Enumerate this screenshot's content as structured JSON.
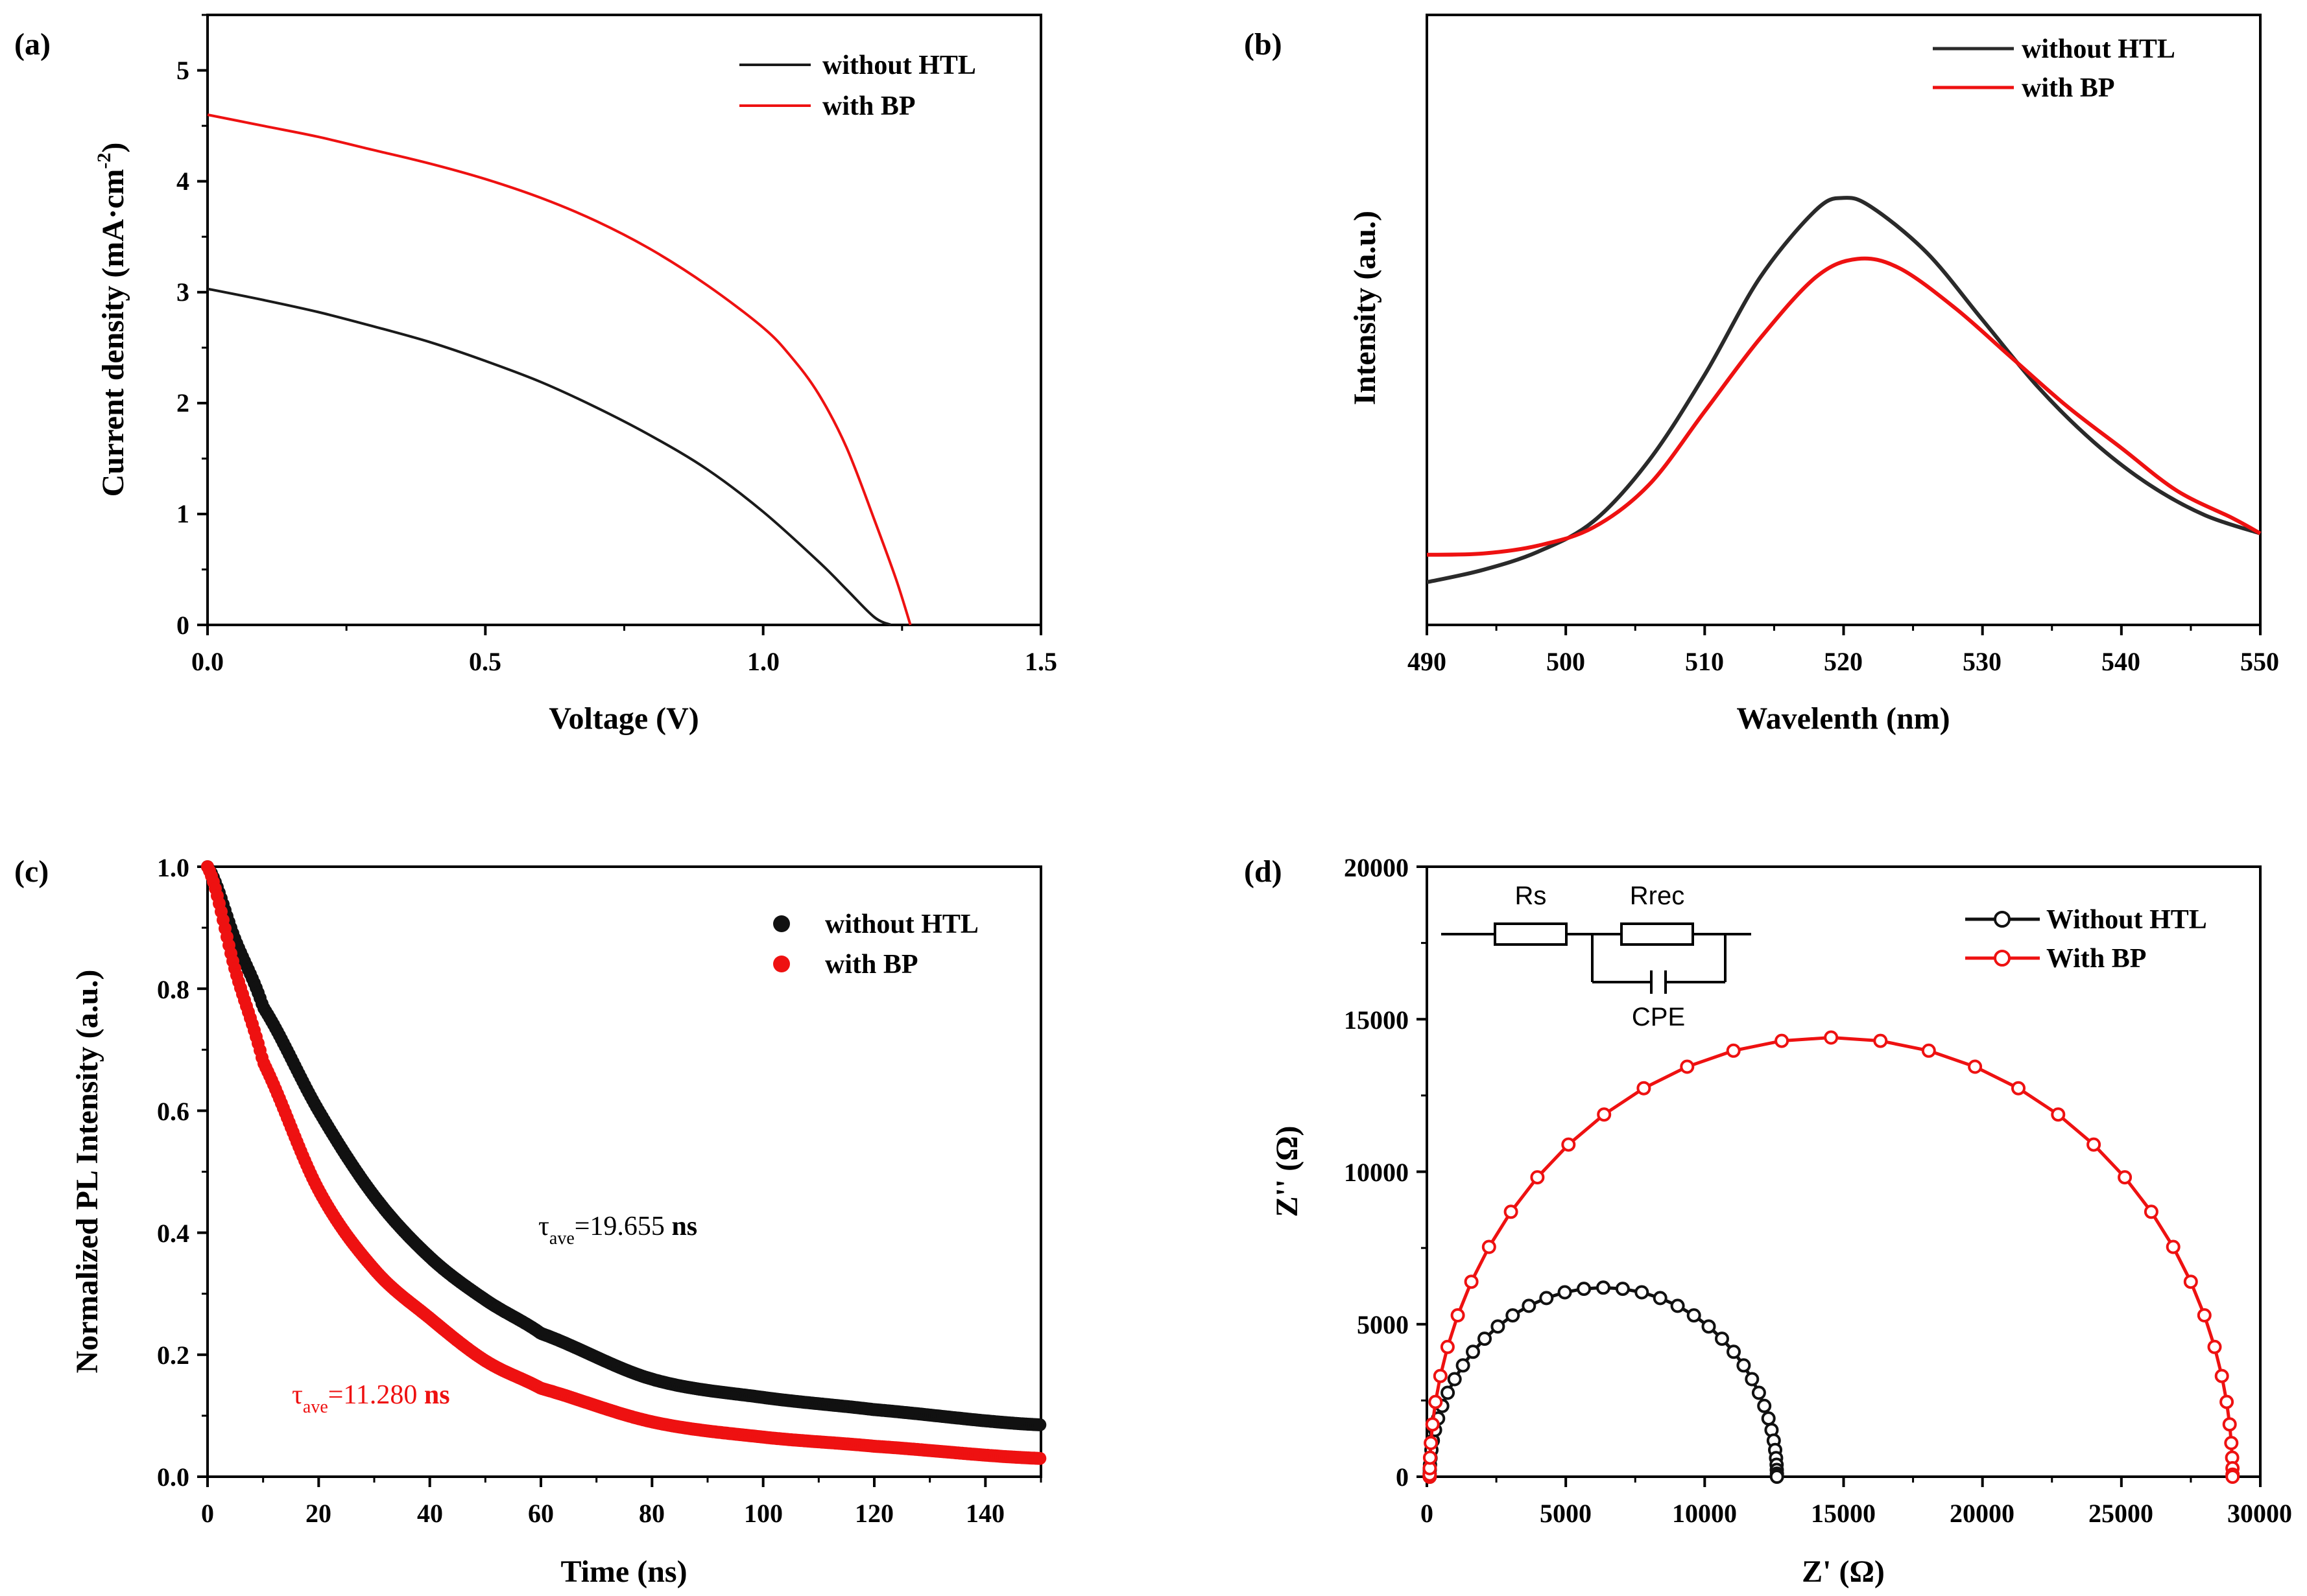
{
  "colors": {
    "black_series": "#1a1a1a",
    "red_series": "#ee1111",
    "axis": "#000000"
  },
  "chart_data": [
    {
      "id": "a",
      "panel_label": "(a)",
      "type": "line",
      "xlabel": "Voltage (V)",
      "ylabel_main": "Current density (mA·cm",
      "ylabel_sup": "-2",
      "ylabel_close": ")",
      "xlim": [
        0,
        1.5
      ],
      "ylim": [
        0,
        5.5
      ],
      "xticks": [
        0.0,
        0.5,
        1.0,
        1.5
      ],
      "xtick_labels": [
        "0.0",
        "0.5",
        "1.0",
        "1.5"
      ],
      "yticks": [
        0,
        1,
        2,
        3,
        4,
        5
      ],
      "ytick_labels": [
        "0",
        "1",
        "2",
        "3",
        "4",
        "5"
      ],
      "legend": [
        "without HTL",
        "with BP"
      ],
      "series": [
        {
          "name": "without HTL",
          "color": "#1a1a1a",
          "x": [
            0,
            0.1,
            0.2,
            0.3,
            0.4,
            0.5,
            0.6,
            0.7,
            0.8,
            0.9,
            1.0,
            1.1,
            1.15,
            1.2,
            1.23
          ],
          "y": [
            3.03,
            2.93,
            2.82,
            2.69,
            2.55,
            2.38,
            2.19,
            1.96,
            1.7,
            1.4,
            1.02,
            0.57,
            0.32,
            0.07,
            0
          ]
        },
        {
          "name": "with BP",
          "color": "#ee1111",
          "x": [
            0,
            0.1,
            0.2,
            0.3,
            0.4,
            0.5,
            0.6,
            0.7,
            0.8,
            0.9,
            1.0,
            1.05,
            1.1,
            1.15,
            1.2,
            1.24,
            1.265
          ],
          "y": [
            4.6,
            4.5,
            4.4,
            4.28,
            4.16,
            4.02,
            3.85,
            3.64,
            3.38,
            3.06,
            2.68,
            2.42,
            2.08,
            1.6,
            0.95,
            0.4,
            0
          ]
        }
      ]
    },
    {
      "id": "b",
      "panel_label": "(b)",
      "type": "line",
      "xlabel": "Wavelenth (nm)",
      "ylabel": "Intensity (a.u.)",
      "xlim": [
        490,
        550
      ],
      "ylim": [
        0,
        1
      ],
      "xticks": [
        490,
        500,
        510,
        520,
        530,
        540,
        550
      ],
      "xtick_labels": [
        "490",
        "500",
        "510",
        "520",
        "530",
        "540",
        "550"
      ],
      "legend": [
        "without HTL",
        "with BP"
      ],
      "series": [
        {
          "name": "without HTL",
          "color": "#2a2a2a",
          "x": [
            490,
            494,
            498,
            502,
            506,
            510,
            514,
            518,
            520,
            522,
            526,
            530,
            534,
            538,
            542,
            546,
            550
          ],
          "y": [
            0.07,
            0.09,
            0.12,
            0.17,
            0.27,
            0.41,
            0.57,
            0.68,
            0.7,
            0.685,
            0.61,
            0.5,
            0.39,
            0.3,
            0.23,
            0.18,
            0.15
          ]
        },
        {
          "name": "with BP",
          "color": "#ee1111",
          "x": [
            490,
            494,
            498,
            502,
            506,
            510,
            514,
            518,
            521,
            524,
            528,
            532,
            536,
            540,
            544,
            548,
            550
          ],
          "y": [
            0.115,
            0.117,
            0.13,
            0.16,
            0.23,
            0.35,
            0.47,
            0.57,
            0.6,
            0.585,
            0.52,
            0.44,
            0.36,
            0.29,
            0.22,
            0.175,
            0.15
          ]
        }
      ]
    },
    {
      "id": "c",
      "panel_label": "(c)",
      "type": "scatter",
      "xlabel": "Time (ns)",
      "ylabel": "Normalized PL Intensity (a.u.)",
      "xlim": [
        0,
        150
      ],
      "ylim": [
        0,
        1.0
      ],
      "xticks": [
        0,
        20,
        40,
        60,
        80,
        100,
        120,
        140
      ],
      "xtick_labels": [
        "0",
        "20",
        "40",
        "60",
        "80",
        "100",
        "120",
        "140"
      ],
      "yticks": [
        0.0,
        0.2,
        0.4,
        0.6,
        0.8,
        1.0
      ],
      "ytick_labels": [
        "0.0",
        "0.2",
        "0.4",
        "0.6",
        "0.8",
        "1.0"
      ],
      "legend": [
        "without HTL",
        "with BP"
      ],
      "annotations": [
        {
          "tau": "τ",
          "sub": "ave",
          "value": "=19.655 ",
          "unit": "ns",
          "color": "#000000"
        },
        {
          "tau": "τ",
          "sub": "ave",
          "value": "=11.280 ",
          "unit": "ns",
          "color": "#ee1111"
        }
      ],
      "series": [
        {
          "name": "without HTL",
          "color": "#111111",
          "x": [
            0,
            5,
            10,
            20,
            30,
            40,
            50,
            60,
            80,
            100,
            120,
            150
          ],
          "y": [
            1.0,
            0.88,
            0.77,
            0.6,
            0.46,
            0.36,
            0.29,
            0.235,
            0.16,
            0.13,
            0.11,
            0.085
          ]
        },
        {
          "name": "with BP",
          "color": "#ee1111",
          "x": [
            0,
            5,
            10,
            20,
            30,
            40,
            50,
            60,
            80,
            100,
            120,
            150
          ],
          "y": [
            1.0,
            0.83,
            0.68,
            0.47,
            0.34,
            0.26,
            0.19,
            0.145,
            0.09,
            0.065,
            0.05,
            0.03
          ]
        }
      ]
    },
    {
      "id": "d",
      "panel_label": "(d)",
      "type": "line",
      "xlabel": "Z' (Ω)",
      "ylabel": "Z'' (Ω)",
      "xlim": [
        0,
        30000
      ],
      "ylim": [
        0,
        20000
      ],
      "xticks": [
        0,
        5000,
        10000,
        15000,
        20000,
        25000,
        30000
      ],
      "xtick_labels": [
        "0",
        "5000",
        "10000",
        "15000",
        "20000",
        "25000",
        "30000"
      ],
      "yticks": [
        0,
        5000,
        10000,
        15000,
        20000
      ],
      "ytick_labels": [
        "0",
        "5000",
        "10000",
        "15000",
        "20000"
      ],
      "legend": [
        "Without HTL",
        "With BP"
      ],
      "circuit": {
        "rs": "Rs",
        "rrec": "Rrec",
        "cpe": "CPE"
      },
      "series": [
        {
          "name": "Without HTL",
          "color": "#111111",
          "rs": 100,
          "rrec": 12500,
          "points": 44,
          "peak": 6200
        },
        {
          "name": "With BP",
          "color": "#ee1111",
          "rs": 100,
          "rrec": 28900,
          "points": 40,
          "peak": 14400
        }
      ]
    }
  ]
}
